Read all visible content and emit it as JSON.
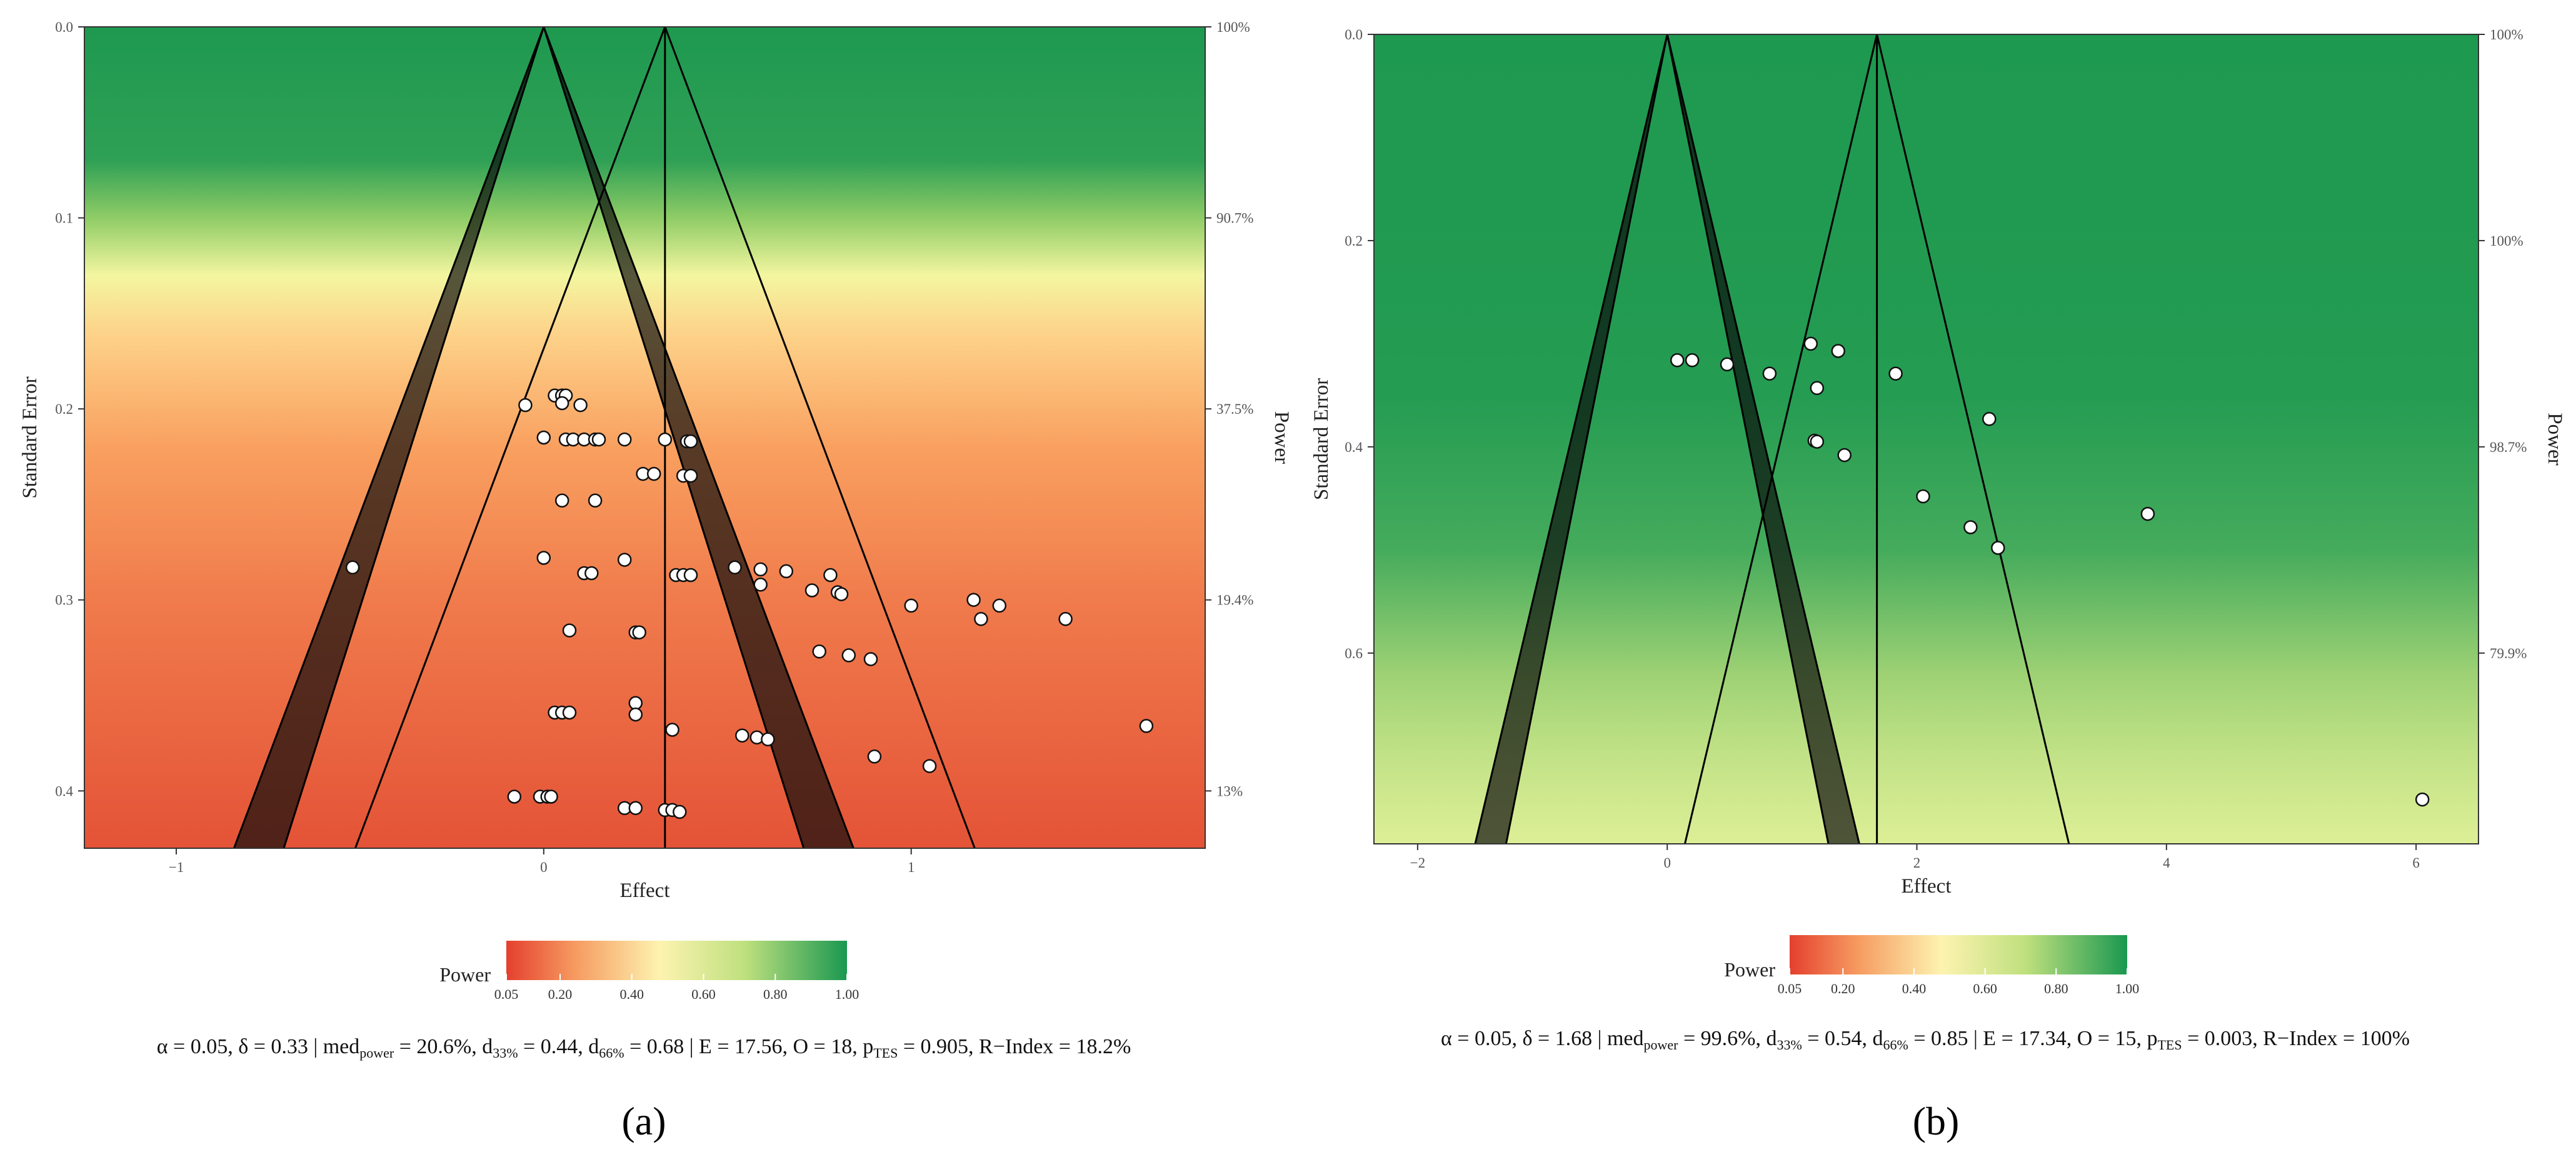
{
  "chart_data": [
    {
      "panel_label": "(a)",
      "type": "scatter",
      "xlabel": "Effect",
      "ylabel": "Standard Error",
      "y2label": "Power",
      "xlim": [
        -1.25,
        1.8
      ],
      "ylim": [
        0.0,
        0.43
      ],
      "y_reversed": true,
      "x_ticks": [
        "−1",
        "0",
        "1"
      ],
      "x_tick_values": [
        -1,
        0,
        1
      ],
      "y_ticks": [
        "0.0",
        "0.1",
        "0.2",
        "0.3",
        "0.4"
      ],
      "y_tick_values": [
        0.0,
        0.1,
        0.2,
        0.3,
        0.4
      ],
      "power_ticks": [
        "100%",
        "90.7%",
        "37.5%",
        "19.4%",
        "13%"
      ],
      "null_effect": 0,
      "delta": 0.33,
      "power_gradient": [
        {
          "se": 0.0,
          "color": "#1e9950"
        },
        {
          "se": 0.07,
          "color": "#2fa055"
        },
        {
          "se": 0.1,
          "color": "#8fcc66"
        },
        {
          "se": 0.13,
          "color": "#f3f6a0"
        },
        {
          "se": 0.16,
          "color": "#fdd38a"
        },
        {
          "se": 0.22,
          "color": "#f9a060"
        },
        {
          "se": 0.3,
          "color": "#f07b4c"
        },
        {
          "se": 0.43,
          "color": "#e45337"
        }
      ],
      "grid": false,
      "points": [
        {
          "x": -0.05,
          "y": 0.198
        },
        {
          "x": 0.03,
          "y": 0.193
        },
        {
          "x": 0.05,
          "y": 0.193
        },
        {
          "x": 0.06,
          "y": 0.193
        },
        {
          "x": 0.05,
          "y": 0.197
        },
        {
          "x": 0.1,
          "y": 0.198
        },
        {
          "x": 0.0,
          "y": 0.215
        },
        {
          "x": 0.06,
          "y": 0.216
        },
        {
          "x": 0.08,
          "y": 0.216
        },
        {
          "x": 0.11,
          "y": 0.216
        },
        {
          "x": 0.14,
          "y": 0.216
        },
        {
          "x": 0.15,
          "y": 0.216
        },
        {
          "x": 0.22,
          "y": 0.216
        },
        {
          "x": 0.33,
          "y": 0.216
        },
        {
          "x": 0.39,
          "y": 0.217
        },
        {
          "x": 0.4,
          "y": 0.217
        },
        {
          "x": 0.27,
          "y": 0.234
        },
        {
          "x": 0.3,
          "y": 0.234
        },
        {
          "x": 0.38,
          "y": 0.235
        },
        {
          "x": 0.4,
          "y": 0.235
        },
        {
          "x": 0.05,
          "y": 0.248
        },
        {
          "x": 0.14,
          "y": 0.248
        },
        {
          "x": -0.52,
          "y": 0.283
        },
        {
          "x": 0.0,
          "y": 0.278
        },
        {
          "x": 0.22,
          "y": 0.279
        },
        {
          "x": 0.11,
          "y": 0.286
        },
        {
          "x": 0.13,
          "y": 0.286
        },
        {
          "x": 0.36,
          "y": 0.287
        },
        {
          "x": 0.38,
          "y": 0.287
        },
        {
          "x": 0.4,
          "y": 0.287
        },
        {
          "x": 0.52,
          "y": 0.283
        },
        {
          "x": 0.59,
          "y": 0.284
        },
        {
          "x": 0.66,
          "y": 0.285
        },
        {
          "x": 0.78,
          "y": 0.287
        },
        {
          "x": 0.59,
          "y": 0.292
        },
        {
          "x": 0.73,
          "y": 0.295
        },
        {
          "x": 0.8,
          "y": 0.296
        },
        {
          "x": 0.81,
          "y": 0.297
        },
        {
          "x": 1.0,
          "y": 0.303
        },
        {
          "x": 1.17,
          "y": 0.3
        },
        {
          "x": 1.19,
          "y": 0.31
        },
        {
          "x": 1.24,
          "y": 0.303
        },
        {
          "x": 1.42,
          "y": 0.31
        },
        {
          "x": 0.07,
          "y": 0.316
        },
        {
          "x": 0.25,
          "y": 0.317
        },
        {
          "x": 0.26,
          "y": 0.317
        },
        {
          "x": 0.75,
          "y": 0.327
        },
        {
          "x": 0.83,
          "y": 0.329
        },
        {
          "x": 0.89,
          "y": 0.331
        },
        {
          "x": 0.25,
          "y": 0.354
        },
        {
          "x": 0.03,
          "y": 0.359
        },
        {
          "x": 0.05,
          "y": 0.359
        },
        {
          "x": 0.07,
          "y": 0.359
        },
        {
          "x": 0.25,
          "y": 0.36
        },
        {
          "x": 0.35,
          "y": 0.368
        },
        {
          "x": 0.54,
          "y": 0.371
        },
        {
          "x": 0.58,
          "y": 0.372
        },
        {
          "x": 0.61,
          "y": 0.373
        },
        {
          "x": 1.64,
          "y": 0.366
        },
        {
          "x": 0.9,
          "y": 0.382
        },
        {
          "x": 1.05,
          "y": 0.387
        },
        {
          "x": -0.08,
          "y": 0.403
        },
        {
          "x": -0.01,
          "y": 0.403
        },
        {
          "x": 0.01,
          "y": 0.403
        },
        {
          "x": 0.02,
          "y": 0.403
        },
        {
          "x": 0.22,
          "y": 0.409
        },
        {
          "x": 0.25,
          "y": 0.409
        },
        {
          "x": 0.33,
          "y": 0.41
        },
        {
          "x": 0.35,
          "y": 0.41
        },
        {
          "x": 0.37,
          "y": 0.411
        }
      ],
      "legend": {
        "title": "Power",
        "ticks": [
          "0.05",
          "0.20",
          "0.40",
          "0.60",
          "0.80",
          "1.00"
        ]
      },
      "stats": {
        "alpha": "α = 0.05, δ = 0.33 | med",
        "med_sub": "power",
        "med_val": " = 20.6%, d",
        "d33_sub": "33%",
        "d33_val": " = 0.44, d",
        "d66_sub": "66%",
        "d66_val": " = 0.68 | E = 17.56, O = 18, p",
        "p_sub": "TES",
        "p_val": " = 0.905, R−Index = 18.2%"
      }
    },
    {
      "panel_label": "(b)",
      "type": "scatter",
      "xlabel": "Effect",
      "ylabel": "Standard Error",
      "y2label": "Power",
      "xlim": [
        -2.35,
        6.5
      ],
      "ylim": [
        0.0,
        0.785
      ],
      "y_reversed": true,
      "x_ticks": [
        "−2",
        "0",
        "2",
        "4",
        "6"
      ],
      "x_tick_values": [
        -2,
        0,
        2,
        4,
        6
      ],
      "y_ticks": [
        "0.0",
        "0.2",
        "0.4",
        "0.6"
      ],
      "y_tick_values": [
        0.0,
        0.2,
        0.4,
        0.6
      ],
      "power_ticks": [
        "100%",
        "100%",
        "98.7%",
        "79.9%"
      ],
      "null_effect": 0,
      "delta": 1.68,
      "power_gradient": [
        {
          "se": 0.0,
          "color": "#1e9950"
        },
        {
          "se": 0.35,
          "color": "#249c52"
        },
        {
          "se": 0.5,
          "color": "#45ab5c"
        },
        {
          "se": 0.62,
          "color": "#9dd174"
        },
        {
          "se": 0.7,
          "color": "#c2e287"
        },
        {
          "se": 0.785,
          "color": "#ddef96"
        }
      ],
      "grid": false,
      "points": [
        {
          "x": 0.08,
          "y": 0.316
        },
        {
          "x": 0.2,
          "y": 0.316
        },
        {
          "x": 0.48,
          "y": 0.32
        },
        {
          "x": 0.82,
          "y": 0.329
        },
        {
          "x": 1.15,
          "y": 0.3
        },
        {
          "x": 1.37,
          "y": 0.307
        },
        {
          "x": 1.2,
          "y": 0.343
        },
        {
          "x": 1.83,
          "y": 0.329
        },
        {
          "x": 2.58,
          "y": 0.373
        },
        {
          "x": 1.18,
          "y": 0.394
        },
        {
          "x": 1.2,
          "y": 0.395
        },
        {
          "x": 1.42,
          "y": 0.408
        },
        {
          "x": 2.05,
          "y": 0.448
        },
        {
          "x": 2.43,
          "y": 0.478
        },
        {
          "x": 2.65,
          "y": 0.498
        },
        {
          "x": 3.85,
          "y": 0.465
        },
        {
          "x": 6.05,
          "y": 0.742
        }
      ],
      "legend": {
        "title": "Power",
        "ticks": [
          "0.05",
          "0.20",
          "0.40",
          "0.60",
          "0.80",
          "1.00"
        ]
      },
      "stats": {
        "alpha": "α = 0.05, δ = 1.68 | med",
        "med_sub": "power",
        "med_val": " = 99.6%, d",
        "d33_sub": "33%",
        "d33_val": " = 0.54, d",
        "d66_sub": "66%",
        "d66_val": " = 0.85 | E = 17.34, O = 15, p",
        "p_sub": "TES",
        "p_val": " = 0.003, R−Index = 100%"
      }
    }
  ]
}
